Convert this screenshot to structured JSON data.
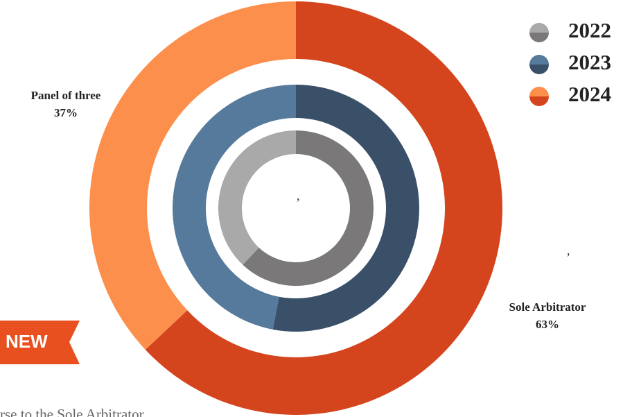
{
  "chart_data": {
    "type": "nested-donut",
    "categories": [
      "Sole Arbitrator",
      "Panel of three"
    ],
    "series": [
      {
        "name": "2022",
        "colors": [
          "#7a7879",
          "#a9a9a9"
        ],
        "values": [
          62,
          38
        ]
      },
      {
        "name": "2023",
        "colors": [
          "#3a5069",
          "#567a9b"
        ],
        "values": [
          53,
          47
        ]
      },
      {
        "name": "2024",
        "colors": [
          "#d4451d",
          "#fd8f4c"
        ],
        "values": [
          63,
          37
        ],
        "value_labels": [
          "63%",
          "37%"
        ]
      }
    ],
    "annotations": [
      ",",
      ","
    ],
    "badge": "NEW",
    "footer_text": "rse to the Sole Arbitrator"
  }
}
